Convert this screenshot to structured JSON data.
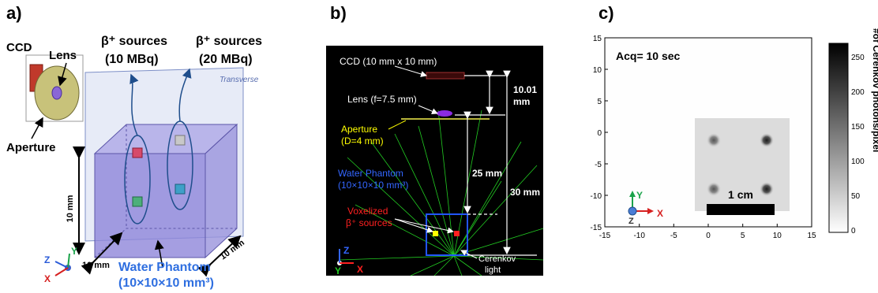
{
  "panel_a": {
    "label": "a)",
    "ccd": "CCD",
    "lens": "Lens",
    "aperture": "Aperture",
    "src1_line1": "β⁺ sources",
    "src1_line2": "(10 MBq)",
    "src2_line1": "β⁺ sources",
    "src2_line2": "(20 MBq)",
    "transverse": "Transverse",
    "dim_height": "10 mm",
    "dim_depth": "10 mm",
    "dim_width": "10 mm",
    "phantom_line1": "Water Phantom",
    "phantom_line2": "(10×10×10 mm³)",
    "axis_x": "X",
    "axis_y": "Y",
    "axis_z": "Z",
    "colors": {
      "phantom_text": "#2f6fe0",
      "arrow": "#000000"
    }
  },
  "panel_b": {
    "label": "b)",
    "ccd": "CCD (10 mm x 10 mm)",
    "lens": "Lens (f=7.5 mm)",
    "aperture_line1": "Aperture",
    "aperture_line2": "(D=4 mm)",
    "phantom_line1": "Water Phantom",
    "phantom_line2": "(10×10×10 mm³)",
    "vox_line1": "Voxelized",
    "vox_line2": "β⁺ sources",
    "dist1_line1": "10.01",
    "dist1_line2": "mm",
    "dist2": "25 mm",
    "dist3": "30 mm",
    "cerenkov_line1": "Cerenkov",
    "cerenkov_line2": "light",
    "axis_z": "Z",
    "axis_y": "Y",
    "axis_x": "X",
    "colors": {
      "aperture": "#ffff00",
      "phantom": "#2255ff",
      "sources": "#ff2020",
      "rays": "#22cc22"
    }
  },
  "panel_c": {
    "label": "c)",
    "acq": "Acq= 10 sec",
    "scale_bar": "1 cm",
    "x_ticks": [
      "-15",
      "-10",
      "-5",
      "0",
      "5",
      "10",
      "15"
    ],
    "y_ticks": [
      "15",
      "10",
      "5",
      "0",
      "-5",
      "-10",
      "-15"
    ],
    "colorbar_ticks": [
      "250",
      "200",
      "150",
      "100",
      "50",
      "0"
    ],
    "colorbar_label": "#of Cerenkov photons/pixel",
    "axis_y": "Y",
    "axis_x": "X",
    "axis_z": "Z"
  }
}
